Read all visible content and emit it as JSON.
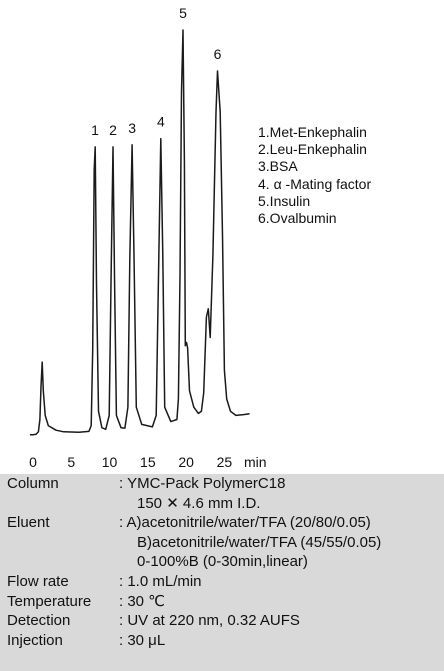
{
  "chart_data": {
    "type": "line",
    "x_unit": "min",
    "xlim": [
      0,
      29
    ],
    "xticks": [
      0,
      5,
      10,
      15,
      20,
      25
    ],
    "ylim": [
      0,
      100
    ],
    "grid": false,
    "legend_placement": "right",
    "trace": [
      [
        -0.4,
        1.3
      ],
      [
        0,
        1.3
      ],
      [
        0.4,
        1.4
      ],
      [
        0.7,
        2.0
      ],
      [
        0.9,
        5.0
      ],
      [
        1.05,
        13.0
      ],
      [
        1.2,
        19.0
      ],
      [
        1.35,
        12.0
      ],
      [
        1.6,
        6.0
      ],
      [
        2.0,
        3.5
      ],
      [
        3,
        2.4
      ],
      [
        4,
        2.0
      ],
      [
        6,
        1.9
      ],
      [
        7.3,
        2.1
      ],
      [
        7.6,
        3.5
      ],
      [
        7.8,
        22.0
      ],
      [
        8.0,
        66.0
      ],
      [
        8.12,
        71.5
      ],
      [
        8.3,
        38.0
      ],
      [
        8.55,
        7.0
      ],
      [
        9.0,
        3.0
      ],
      [
        9.5,
        2.6
      ],
      [
        9.95,
        6.0
      ],
      [
        10.2,
        40.0
      ],
      [
        10.45,
        71.5
      ],
      [
        10.65,
        40.0
      ],
      [
        10.9,
        6.0
      ],
      [
        11.5,
        3.0
      ],
      [
        12.0,
        2.9
      ],
      [
        12.4,
        8.0
      ],
      [
        12.65,
        44.0
      ],
      [
        12.95,
        72.0
      ],
      [
        13.2,
        45.0
      ],
      [
        13.5,
        8.0
      ],
      [
        14.2,
        3.8
      ],
      [
        15.6,
        3.2
      ],
      [
        16.1,
        6.0
      ],
      [
        16.4,
        40.0
      ],
      [
        16.7,
        73.5
      ],
      [
        16.95,
        45.0
      ],
      [
        17.2,
        8.0
      ],
      [
        18.0,
        4.5
      ],
      [
        18.8,
        5.0
      ],
      [
        19.0,
        10.0
      ],
      [
        19.2,
        40.0
      ],
      [
        19.4,
        85.0
      ],
      [
        19.6,
        100.0
      ],
      [
        19.78,
        68.0
      ],
      [
        19.9,
        23.0
      ],
      [
        20.05,
        23.8
      ],
      [
        20.2,
        22.5
      ],
      [
        20.45,
        12.0
      ],
      [
        21.0,
        8.0
      ],
      [
        21.6,
        6.5
      ],
      [
        22.0,
        7.0
      ],
      [
        22.3,
        11.5
      ],
      [
        22.65,
        30.0
      ],
      [
        22.9,
        32.0
      ],
      [
        23.15,
        25.0
      ],
      [
        23.5,
        45.0
      ],
      [
        23.9,
        80.0
      ],
      [
        24.1,
        90.0
      ],
      [
        24.45,
        80.0
      ],
      [
        24.75,
        50.0
      ],
      [
        25.0,
        17.0
      ],
      [
        25.3,
        10.0
      ],
      [
        25.8,
        7.0
      ],
      [
        26.5,
        6.0
      ],
      [
        27.5,
        6.2
      ],
      [
        28.3,
        6.4
      ]
    ],
    "peaks": [
      {
        "label": "1",
        "x": 8.1,
        "y": 71.5
      },
      {
        "label": "2",
        "x": 10.45,
        "y": 71.5
      },
      {
        "label": "3",
        "x": 12.95,
        "y": 72.0
      },
      {
        "label": "4",
        "x": 16.7,
        "y": 73.5
      },
      {
        "label": "5",
        "x": 19.6,
        "y": 100.0
      },
      {
        "label": "6",
        "x": 24.1,
        "y": 90.0
      }
    ],
    "legend": [
      "1.Met-Enkephalin",
      "2.Leu-Enkephalin",
      "3.BSA",
      "4. α -Mating factor",
      "5.Insulin",
      "6.Ovalbumin"
    ]
  },
  "conditions": [
    {
      "label": "Column",
      "values": [
        ": YMC-Pack PolymerC18",
        "150 ✕ 4.6 mm I.D."
      ]
    },
    {
      "label": "Eluent",
      "values": [
        ": A)acetonitrile/water/TFA (20/80/0.05)",
        "B)acetonitrile/water/TFA (45/55/0.05)",
        "0-100%B (0-30min,linear)"
      ]
    },
    {
      "label": "Flow rate",
      "values": [
        ": 1.0 mL/min"
      ]
    },
    {
      "label": "Temperature",
      "values": [
        ": 30 ℃"
      ]
    },
    {
      "label": "Detection",
      "values": [
        ": UV at 220 nm, 0.32 AUFS"
      ]
    },
    {
      "label": "Injection",
      "values": [
        ": 30 μL"
      ]
    }
  ]
}
